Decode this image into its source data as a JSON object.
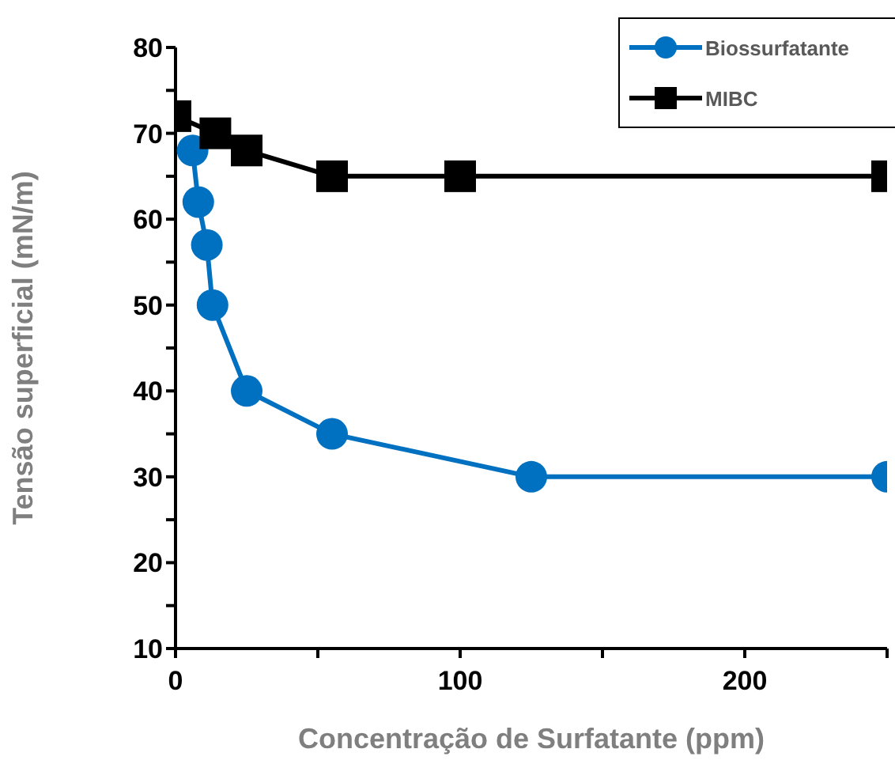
{
  "chart_data": {
    "type": "line",
    "xlabel": "Concentração de Surfatante (ppm)",
    "ylabel": "Tensão superficial (mN/m)",
    "series": [
      {
        "name": "Biossurfatante",
        "color": "#0070c0",
        "marker": "circle",
        "x": [
          6,
          8,
          11,
          13,
          25,
          55,
          125,
          250
        ],
        "values": [
          68,
          62,
          57,
          50,
          40,
          35,
          30,
          30
        ]
      },
      {
        "name": "MIBC",
        "color": "#000000",
        "marker": "square",
        "x": [
          0,
          14,
          25,
          55,
          100,
          250
        ],
        "values": [
          72,
          70,
          68,
          65,
          65,
          65
        ]
      }
    ],
    "xlim": [
      0,
      250
    ],
    "xticks": [
      0,
      {
        "value": 50,
        "label": null
      },
      100,
      {
        "value": 150,
        "label": null
      },
      200,
      {
        "value": 250,
        "label": null
      }
    ],
    "ylim": [
      10,
      80
    ],
    "yticks": [
      10,
      {
        "value": 15,
        "label": null
      },
      20,
      {
        "value": 25,
        "label": null
      },
      30,
      {
        "value": 35,
        "label": null
      },
      40,
      {
        "value": 45,
        "label": null
      },
      50,
      {
        "value": 55,
        "label": null
      },
      60,
      {
        "value": 65,
        "label": null
      },
      70,
      {
        "value": 75,
        "label": null
      },
      80
    ],
    "grid": false,
    "legend": "top right",
    "line_style": "solid"
  }
}
